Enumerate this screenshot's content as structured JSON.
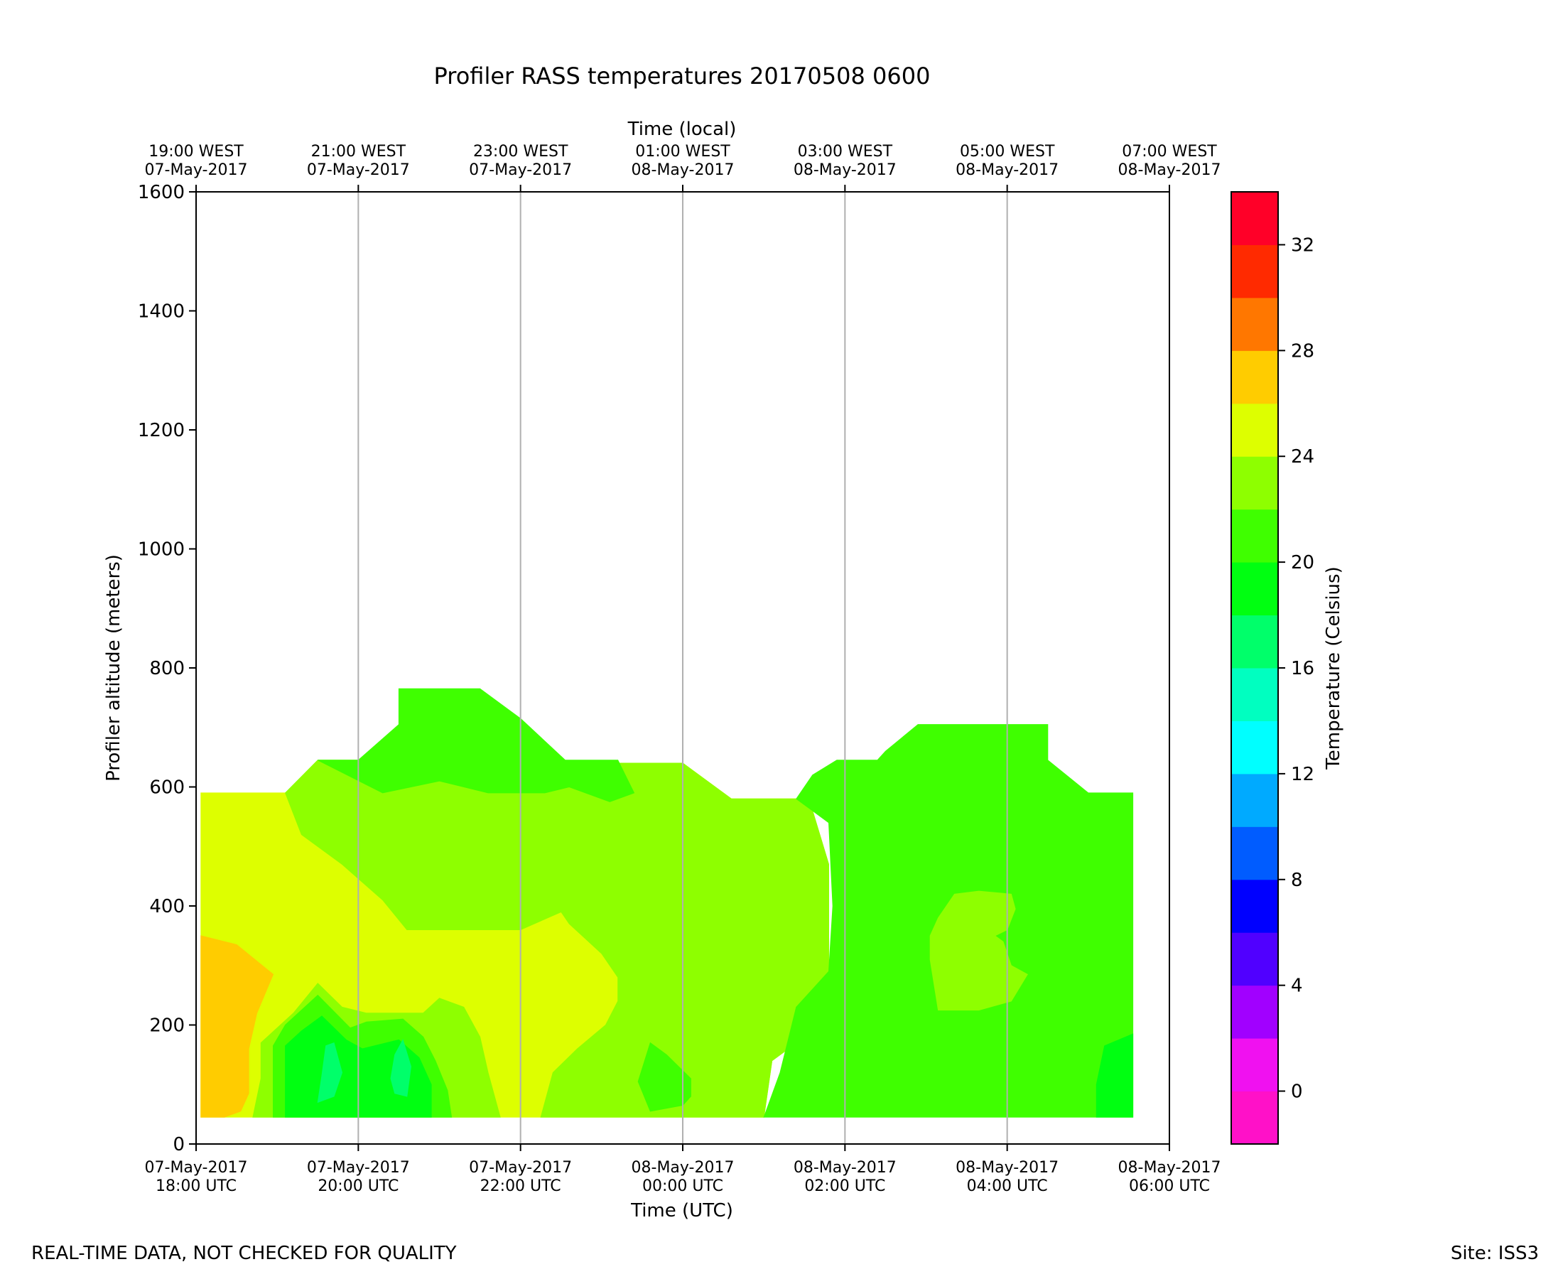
{
  "page": {
    "footer_left": "REAL-TIME DATA, NOT CHECKED FOR QUALITY",
    "footer_right": "Site: ISS3"
  },
  "chart_data": {
    "type": "contourf",
    "title": "Profiler RASS temperatures 20170508 0600",
    "xlabel": "Time (UTC)",
    "x2label": "Time (local)",
    "ylabel": "Profiler altitude (meters)",
    "ylim": [
      0,
      1600
    ],
    "yticks": [
      0,
      200,
      400,
      600,
      800,
      1000,
      1200,
      1400,
      1600
    ],
    "xlim_hours_utc": [
      18,
      30
    ],
    "grid": "vertical at 2-hour x ticks",
    "xticks_bottom": [
      {
        "hour": 18,
        "line1": "07-May-2017",
        "line2": "18:00 UTC"
      },
      {
        "hour": 20,
        "line1": "07-May-2017",
        "line2": "20:00 UTC"
      },
      {
        "hour": 22,
        "line1": "07-May-2017",
        "line2": "22:00 UTC"
      },
      {
        "hour": 24,
        "line1": "08-May-2017",
        "line2": "00:00 UTC"
      },
      {
        "hour": 26,
        "line1": "08-May-2017",
        "line2": "02:00 UTC"
      },
      {
        "hour": 28,
        "line1": "08-May-2017",
        "line2": "04:00 UTC"
      },
      {
        "hour": 30,
        "line1": "08-May-2017",
        "line2": "06:00 UTC"
      }
    ],
    "xticks_top": [
      {
        "hour": 18,
        "line1": "19:00 WEST",
        "line2": "07-May-2017"
      },
      {
        "hour": 20,
        "line1": "21:00 WEST",
        "line2": "07-May-2017"
      },
      {
        "hour": 22,
        "line1": "23:00 WEST",
        "line2": "07-May-2017"
      },
      {
        "hour": 24,
        "line1": "01:00 WEST",
        "line2": "08-May-2017"
      },
      {
        "hour": 26,
        "line1": "03:00 WEST",
        "line2": "08-May-2017"
      },
      {
        "hour": 28,
        "line1": "05:00 WEST",
        "line2": "08-May-2017"
      },
      {
        "hour": 30,
        "line1": "07:00 WEST",
        "line2": "08-May-2017"
      }
    ],
    "colorbar": {
      "label": "Temperature (Celsius)",
      "range": [
        -2,
        34
      ],
      "ticks": [
        0,
        4,
        8,
        12,
        16,
        20,
        24,
        28,
        32
      ],
      "levels": [
        {
          "from": -2,
          "to": 0,
          "color": "#ff11c8"
        },
        {
          "from": 0,
          "to": 2,
          "color": "#f011f0"
        },
        {
          "from": 2,
          "to": 4,
          "color": "#a100ff"
        },
        {
          "from": 4,
          "to": 6,
          "color": "#5000ff"
        },
        {
          "from": 6,
          "to": 8,
          "color": "#0000ff"
        },
        {
          "from": 8,
          "to": 10,
          "color": "#005cff"
        },
        {
          "from": 10,
          "to": 12,
          "color": "#00aaff"
        },
        {
          "from": 12,
          "to": 14,
          "color": "#00ffff"
        },
        {
          "from": 14,
          "to": 16,
          "color": "#00ffc0"
        },
        {
          "from": 16,
          "to": 18,
          "color": "#00ff6a"
        },
        {
          "from": 18,
          "to": 20,
          "color": "#00ff11"
        },
        {
          "from": 20,
          "to": 22,
          "color": "#3fff00"
        },
        {
          "from": 22,
          "to": 24,
          "color": "#8eff00"
        },
        {
          "from": 24,
          "to": 26,
          "color": "#ddff00"
        },
        {
          "from": 26,
          "to": 28,
          "color": "#ffcc00"
        },
        {
          "from": 28,
          "to": 30,
          "color": "#ff7700"
        },
        {
          "from": 30,
          "to": 32,
          "color": "#ff2a00"
        },
        {
          "from": 32,
          "to": 34,
          "color": "#ff0028"
        }
      ]
    },
    "regions": [
      {
        "level": 24,
        "color": "#ddff00",
        "points": [
          [
            18.06,
            45
          ],
          [
            18.06,
            590
          ],
          [
            19.1,
            590
          ],
          [
            21.0,
            630
          ],
          [
            21.9,
            640
          ],
          [
            22.4,
            640
          ],
          [
            23.7,
            640
          ],
          [
            24.0,
            640
          ],
          [
            24.6,
            580
          ],
          [
            25.4,
            580
          ],
          [
            25.6,
            560
          ],
          [
            25.8,
            470
          ],
          [
            25.8,
            420
          ],
          [
            25.8,
            260
          ],
          [
            25.7,
            200
          ],
          [
            25.1,
            140
          ],
          [
            25.0,
            45
          ]
        ]
      },
      {
        "level": 22,
        "color": "#8eff00",
        "points": [
          [
            19.1,
            590
          ],
          [
            19.5,
            645
          ],
          [
            20.0,
            645
          ],
          [
            21.0,
            640
          ],
          [
            22.4,
            640
          ],
          [
            23.7,
            640
          ],
          [
            24.0,
            640
          ],
          [
            24.6,
            580
          ],
          [
            25.4,
            580
          ],
          [
            25.6,
            560
          ],
          [
            25.8,
            470
          ],
          [
            25.8,
            420
          ],
          [
            25.8,
            260
          ],
          [
            25.7,
            200
          ],
          [
            25.1,
            140
          ],
          [
            25.0,
            45
          ],
          [
            22.25,
            45
          ],
          [
            22.4,
            120
          ],
          [
            22.7,
            160
          ],
          [
            23.05,
            200
          ],
          [
            23.2,
            240
          ],
          [
            23.2,
            280
          ],
          [
            23.0,
            320
          ],
          [
            22.6,
            370
          ],
          [
            22.5,
            390
          ],
          [
            22.0,
            360
          ],
          [
            21.3,
            360
          ],
          [
            20.6,
            360
          ],
          [
            20.3,
            410
          ],
          [
            19.8,
            470
          ],
          [
            19.3,
            520
          ]
        ]
      },
      {
        "level": 22,
        "color": "#8eff00",
        "points": [
          [
            18.7,
            45
          ],
          [
            18.8,
            110
          ],
          [
            18.8,
            170
          ],
          [
            19.2,
            220
          ],
          [
            19.5,
            270
          ],
          [
            19.8,
            230
          ],
          [
            20.1,
            220
          ],
          [
            20.8,
            220
          ],
          [
            21.0,
            245
          ],
          [
            21.3,
            230
          ],
          [
            21.5,
            180
          ],
          [
            21.6,
            120
          ],
          [
            21.75,
            45
          ]
        ]
      },
      {
        "level": 20,
        "color": "#3fff00",
        "points": [
          [
            19.5,
            645
          ],
          [
            20.0,
            645
          ],
          [
            20.5,
            705
          ],
          [
            20.5,
            765
          ],
          [
            21.5,
            765
          ],
          [
            22.0,
            715
          ],
          [
            22.55,
            645
          ],
          [
            23.2,
            645
          ],
          [
            23.4,
            590
          ],
          [
            23.1,
            575
          ],
          [
            22.6,
            600
          ],
          [
            22.3,
            590
          ],
          [
            21.6,
            590
          ],
          [
            21.0,
            610
          ],
          [
            20.3,
            590
          ]
        ]
      },
      {
        "level": 20,
        "color": "#3fff00",
        "points": [
          [
            25.4,
            580
          ],
          [
            25.6,
            620
          ],
          [
            25.9,
            645
          ],
          [
            26.4,
            645
          ],
          [
            26.5,
            660
          ],
          [
            26.9,
            705
          ],
          [
            28.5,
            705
          ],
          [
            28.5,
            645
          ],
          [
            29.0,
            590
          ],
          [
            29.55,
            590
          ],
          [
            29.55,
            45
          ],
          [
            25.0,
            45
          ],
          [
            25.2,
            120
          ],
          [
            25.4,
            230
          ],
          [
            25.8,
            290
          ],
          [
            25.85,
            400
          ],
          [
            25.8,
            540
          ],
          [
            25.6,
            560
          ]
        ]
      },
      {
        "level": 22,
        "color": "#8eff00",
        "points": [
          [
            27.05,
            350
          ],
          [
            27.15,
            380
          ],
          [
            27.35,
            420
          ],
          [
            27.65,
            425
          ],
          [
            28.05,
            420
          ],
          [
            28.1,
            395
          ],
          [
            28.0,
            360
          ],
          [
            27.85,
            350
          ],
          [
            27.95,
            340
          ],
          [
            28.05,
            300
          ],
          [
            28.25,
            285
          ],
          [
            28.05,
            240
          ],
          [
            27.65,
            225
          ],
          [
            27.15,
            225
          ],
          [
            27.05,
            310
          ]
        ]
      },
      {
        "level": 26,
        "color": "#ffcc00",
        "points": [
          [
            18.06,
            45
          ],
          [
            18.06,
            350
          ],
          [
            18.5,
            335
          ],
          [
            18.95,
            285
          ],
          [
            18.75,
            220
          ],
          [
            18.65,
            160
          ],
          [
            18.65,
            85
          ],
          [
            18.55,
            55
          ],
          [
            18.35,
            45
          ]
        ]
      },
      {
        "level": 20,
        "color": "#3fff00",
        "points": [
          [
            18.95,
            45
          ],
          [
            18.95,
            165
          ],
          [
            19.1,
            200
          ],
          [
            19.5,
            250
          ],
          [
            19.9,
            195
          ],
          [
            20.1,
            205
          ],
          [
            20.55,
            210
          ],
          [
            20.8,
            180
          ],
          [
            20.95,
            140
          ],
          [
            21.1,
            90
          ],
          [
            21.15,
            45
          ]
        ]
      },
      {
        "level": 20,
        "color": "#3fff00",
        "points": [
          [
            23.45,
            105
          ],
          [
            23.6,
            170
          ],
          [
            23.8,
            150
          ],
          [
            24.1,
            110
          ],
          [
            24.1,
            80
          ],
          [
            24.0,
            65
          ],
          [
            23.6,
            55
          ]
        ]
      },
      {
        "level": 18,
        "color": "#00ff11",
        "points": [
          [
            19.1,
            45
          ],
          [
            19.1,
            165
          ],
          [
            19.3,
            190
          ],
          [
            19.55,
            215
          ],
          [
            19.85,
            175
          ],
          [
            20.05,
            160
          ],
          [
            20.5,
            175
          ],
          [
            20.75,
            145
          ],
          [
            20.9,
            100
          ],
          [
            20.9,
            45
          ]
        ]
      },
      {
        "level": 18,
        "color": "#00ff11",
        "points": [
          [
            29.1,
            45
          ],
          [
            29.1,
            100
          ],
          [
            29.2,
            165
          ],
          [
            29.55,
            185
          ],
          [
            29.55,
            45
          ]
        ]
      },
      {
        "level": 16,
        "color": "#00ff6a",
        "points": [
          [
            19.5,
            70
          ],
          [
            19.7,
            80
          ],
          [
            19.8,
            120
          ],
          [
            19.7,
            170
          ],
          [
            19.6,
            165
          ],
          [
            19.55,
            115
          ]
        ]
      },
      {
        "level": 16,
        "color": "#00ff6a",
        "points": [
          [
            20.45,
            85
          ],
          [
            20.6,
            80
          ],
          [
            20.65,
            130
          ],
          [
            20.55,
            175
          ],
          [
            20.45,
            150
          ],
          [
            20.4,
            110
          ]
        ]
      }
    ]
  }
}
